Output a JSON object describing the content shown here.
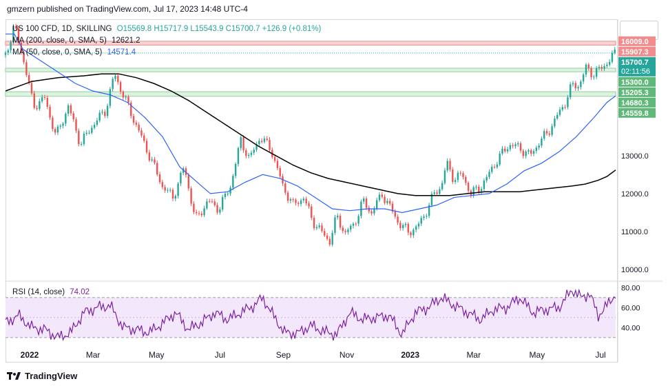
{
  "header": {
    "published": "gmzern published on TradingView.com, Jul 17, 2023 14:48 UTC-4"
  },
  "legend": {
    "symbol": "US 100 CFD, 1D, SKILLING",
    "ohlc": "O15569.8 H15717.9 L15543.9 C15700.7 +126.9 (+0.81%)",
    "ma200_label": "MA (200, close, 0, SMA, 5)",
    "ma200_value": "12621.2",
    "ma50_label": "MA (50, close, 0, SMA, 5)",
    "ma50_value": "14571.4",
    "rsi_label": "RSI (14, close)",
    "rsi_value": "74.02"
  },
  "footer": {
    "brand": "TradingView"
  },
  "colors": {
    "up": "#26a69a",
    "down": "#ef5350",
    "ma50": "#2962ff",
    "ma200": "#000000",
    "rsi": "#7b1fa2",
    "resistance": "#f28b8b",
    "support": "#8fd19e"
  },
  "chart_data": {
    "type": "candlestick",
    "price_axis": {
      "ticks": [
        10000,
        11000,
        12000,
        13000
      ],
      "tick_labels": [
        "10000.0",
        "11000.0",
        "12000.0",
        "13000.0"
      ],
      "ylim": [
        9750,
        16550
      ]
    },
    "time_axis": {
      "labels": [
        "2022",
        "Mar",
        "May",
        "Jul",
        "Sep",
        "Nov",
        "2023",
        "Mar",
        "May",
        "Jul"
      ]
    },
    "price_badges": [
      {
        "label": "16009.0",
        "value": 16009,
        "kind": "resistance"
      },
      {
        "label": "15907.3",
        "value": 15907.3,
        "kind": "resistance"
      },
      {
        "label": "15700.7",
        "sublabel": "02:11:56",
        "value": 15700.7,
        "kind": "last"
      },
      {
        "label": "15300.0",
        "value": 15300,
        "kind": "support"
      },
      {
        "label": "15205.3",
        "value": 15205.3,
        "kind": "support"
      },
      {
        "label": "14680.3",
        "value": 14680.3,
        "kind": "support"
      },
      {
        "label": "14559.8",
        "value": 14559.8,
        "kind": "support"
      }
    ],
    "price_path": [
      [
        0,
        15650
      ],
      [
        10,
        16400
      ],
      [
        20,
        15600
      ],
      [
        32,
        14300
      ],
      [
        45,
        14500
      ],
      [
        58,
        13500
      ],
      [
        72,
        14300
      ],
      [
        86,
        13300
      ],
      [
        100,
        13800
      ],
      [
        115,
        14200
      ],
      [
        125,
        15150
      ],
      [
        135,
        14600
      ],
      [
        150,
        13800
      ],
      [
        165,
        13000
      ],
      [
        180,
        12200
      ],
      [
        192,
        11900
      ],
      [
        205,
        12700
      ],
      [
        218,
        11300
      ],
      [
        232,
        11800
      ],
      [
        245,
        11600
      ],
      [
        258,
        12200
      ],
      [
        270,
        13400
      ],
      [
        280,
        12900
      ],
      [
        292,
        13500
      ],
      [
        305,
        13150
      ],
      [
        318,
        12200
      ],
      [
        330,
        11700
      ],
      [
        342,
        11900
      ],
      [
        352,
        11300
      ],
      [
        362,
        11000
      ],
      [
        372,
        10750
      ],
      [
        380,
        11400
      ],
      [
        390,
        10950
      ],
      [
        400,
        11200
      ],
      [
        410,
        11800
      ],
      [
        420,
        11500
      ],
      [
        432,
        12000
      ],
      [
        442,
        11600
      ],
      [
        452,
        11200
      ],
      [
        462,
        11000
      ],
      [
        472,
        11100
      ],
      [
        482,
        11500
      ],
      [
        492,
        12000
      ],
      [
        500,
        12200
      ],
      [
        506,
        12800
      ],
      [
        514,
        12400
      ],
      [
        524,
        12500
      ],
      [
        534,
        12000
      ],
      [
        544,
        12150
      ],
      [
        552,
        12400
      ],
      [
        560,
        12750
      ],
      [
        568,
        13000
      ],
      [
        578,
        13300
      ],
      [
        590,
        13200
      ],
      [
        602,
        13000
      ],
      [
        612,
        13350
      ],
      [
        622,
        13600
      ],
      [
        632,
        14000
      ],
      [
        642,
        14400
      ],
      [
        650,
        14850
      ],
      [
        658,
        14850
      ],
      [
        666,
        15300
      ],
      [
        674,
        15150
      ],
      [
        684,
        15300
      ],
      [
        692,
        15500
      ],
      [
        700,
        15700
      ]
    ],
    "ma50_path": [
      [
        0,
        16200
      ],
      [
        10,
        16200
      ],
      [
        20,
        15800
      ],
      [
        40,
        15500
      ],
      [
        60,
        15200
      ],
      [
        80,
        14900
      ],
      [
        100,
        14700
      ],
      [
        120,
        14600
      ],
      [
        140,
        14400
      ],
      [
        160,
        14000
      ],
      [
        180,
        13500
      ],
      [
        200,
        12700
      ],
      [
        215,
        12400
      ],
      [
        235,
        12000
      ],
      [
        255,
        12050
      ],
      [
        275,
        12300
      ],
      [
        295,
        12500
      ],
      [
        315,
        12400
      ],
      [
        335,
        12200
      ],
      [
        355,
        11900
      ],
      [
        375,
        11600
      ],
      [
        395,
        11550
      ],
      [
        415,
        11600
      ],
      [
        435,
        11600
      ],
      [
        455,
        11500
      ],
      [
        475,
        11600
      ],
      [
        495,
        11700
      ],
      [
        515,
        11900
      ],
      [
        535,
        11950
      ],
      [
        555,
        12000
      ],
      [
        575,
        12250
      ],
      [
        595,
        12600
      ],
      [
        615,
        12800
      ],
      [
        635,
        13100
      ],
      [
        655,
        13500
      ],
      [
        675,
        14000
      ],
      [
        690,
        14400
      ],
      [
        700,
        14571.4
      ]
    ],
    "ma200_path": [
      [
        0,
        14700
      ],
      [
        30,
        14950
      ],
      [
        60,
        15050
      ],
      [
        90,
        15100
      ],
      [
        110,
        15150
      ],
      [
        130,
        15150
      ],
      [
        150,
        15050
      ],
      [
        170,
        14900
      ],
      [
        190,
        14700
      ],
      [
        210,
        14450
      ],
      [
        230,
        14150
      ],
      [
        250,
        13850
      ],
      [
        270,
        13550
      ],
      [
        290,
        13250
      ],
      [
        310,
        13000
      ],
      [
        330,
        12750
      ],
      [
        350,
        12550
      ],
      [
        370,
        12400
      ],
      [
        390,
        12300
      ],
      [
        410,
        12200
      ],
      [
        430,
        12100
      ],
      [
        450,
        12000
      ],
      [
        470,
        11950
      ],
      [
        490,
        11950
      ],
      [
        510,
        11950
      ],
      [
        530,
        12000
      ],
      [
        550,
        12050
      ],
      [
        570,
        12050
      ],
      [
        590,
        12050
      ],
      [
        610,
        12100
      ],
      [
        630,
        12150
      ],
      [
        650,
        12200
      ],
      [
        665,
        12250
      ],
      [
        680,
        12350
      ],
      [
        690,
        12450
      ],
      [
        700,
        12621.2
      ]
    ],
    "rsi": {
      "ylim": [
        25,
        85
      ],
      "ticks": [
        40,
        60,
        80
      ],
      "tick_labels": [
        "40.00",
        "60.00",
        "80.00"
      ],
      "band": [
        30,
        70
      ],
      "path": [
        [
          0,
          45
        ],
        [
          15,
          52
        ],
        [
          30,
          40
        ],
        [
          45,
          38
        ],
        [
          60,
          30
        ],
        [
          75,
          35
        ],
        [
          90,
          55
        ],
        [
          105,
          60
        ],
        [
          120,
          62
        ],
        [
          135,
          40
        ],
        [
          150,
          38
        ],
        [
          165,
          35
        ],
        [
          180,
          44
        ],
        [
          195,
          55
        ],
        [
          210,
          38
        ],
        [
          225,
          45
        ],
        [
          240,
          55
        ],
        [
          255,
          48
        ],
        [
          270,
          55
        ],
        [
          285,
          62
        ],
        [
          295,
          70
        ],
        [
          305,
          55
        ],
        [
          320,
          35
        ],
        [
          335,
          34
        ],
        [
          350,
          42
        ],
        [
          365,
          36
        ],
        [
          380,
          33
        ],
        [
          395,
          55
        ],
        [
          410,
          48
        ],
        [
          425,
          50
        ],
        [
          440,
          52
        ],
        [
          455,
          33
        ],
        [
          470,
          55
        ],
        [
          485,
          60
        ],
        [
          500,
          70
        ],
        [
          515,
          62
        ],
        [
          530,
          55
        ],
        [
          545,
          48
        ],
        [
          560,
          58
        ],
        [
          575,
          60
        ],
        [
          590,
          70
        ],
        [
          605,
          55
        ],
        [
          620,
          58
        ],
        [
          635,
          60
        ],
        [
          650,
          78
        ],
        [
          660,
          70
        ],
        [
          670,
          74
        ],
        [
          680,
          52
        ],
        [
          690,
          62
        ],
        [
          700,
          74
        ]
      ]
    }
  }
}
